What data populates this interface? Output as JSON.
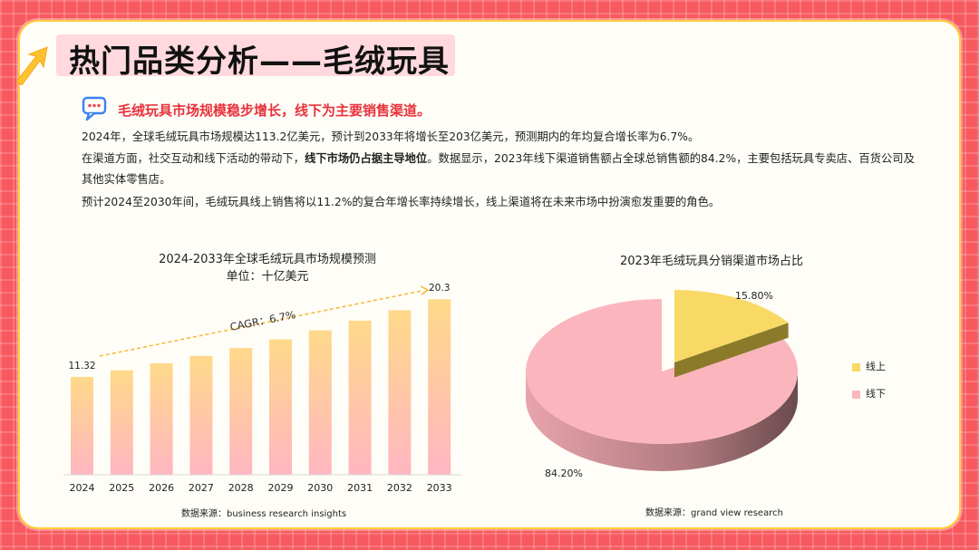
{
  "header": {
    "title": "热门品类分析——毛绒玩具",
    "headline": "毛绒玩具市场规模稳步增长，线下为主要销售渠道。"
  },
  "body": {
    "p1": "2024年，全球毛绒玩具市场规模达113.2亿美元，预计到2033年将增长至203亿美元，预测期内的年均复合增长率为6.7%。",
    "p2_pre": "在渠道方面，社交互动和线下活动的带动下，",
    "p2_bold": "线下市场仍占据主导地位",
    "p2_post": "。数据显示，2023年线下渠道销售额占全球总销售额的84.2%，主要包括玩具专卖店、百货公司及其他实体零售店。",
    "p3": "预计2024至2030年间，毛绒玩具线上销售将以11.2%的复合年增长率持续增长，线上渠道将在未来市场中扮演愈发重要的角色。"
  },
  "colors": {
    "background": "#f7595f",
    "accent_red": "#e8323c",
    "accent_yellow": "#ffcf3a",
    "bar_top": "#ffd98a",
    "bar_bottom": "#ffb6c1",
    "pie_online": "#f9d965",
    "pie_offline": "#fbb6bd",
    "cagr_arrow": "#f5b82e"
  },
  "chart_data": [
    {
      "type": "bar",
      "title": "2024-2033年全球毛绒玩具市场规模预测",
      "subtitle": "单位：十亿美元",
      "categories": [
        "2024",
        "2025",
        "2026",
        "2027",
        "2028",
        "2029",
        "2030",
        "2031",
        "2032",
        "2033"
      ],
      "values": [
        11.32,
        12.08,
        12.89,
        13.75,
        14.67,
        15.65,
        16.7,
        17.82,
        19.02,
        20.3
      ],
      "data_labels": {
        "first": "11.32",
        "last": "20.3"
      },
      "annotation": "CAGR：6.7%",
      "ylim": [
        0,
        22
      ],
      "source": "数据来源：business research insights"
    },
    {
      "type": "pie",
      "title": "2023年毛绒玩具分销渠道市场占比",
      "slices": [
        {
          "label": "线上",
          "value": 15.8,
          "display": "15.80%"
        },
        {
          "label": "线下",
          "value": 84.2,
          "display": "84.20%"
        }
      ],
      "legend": "right",
      "source": "数据来源：grand view research"
    }
  ]
}
